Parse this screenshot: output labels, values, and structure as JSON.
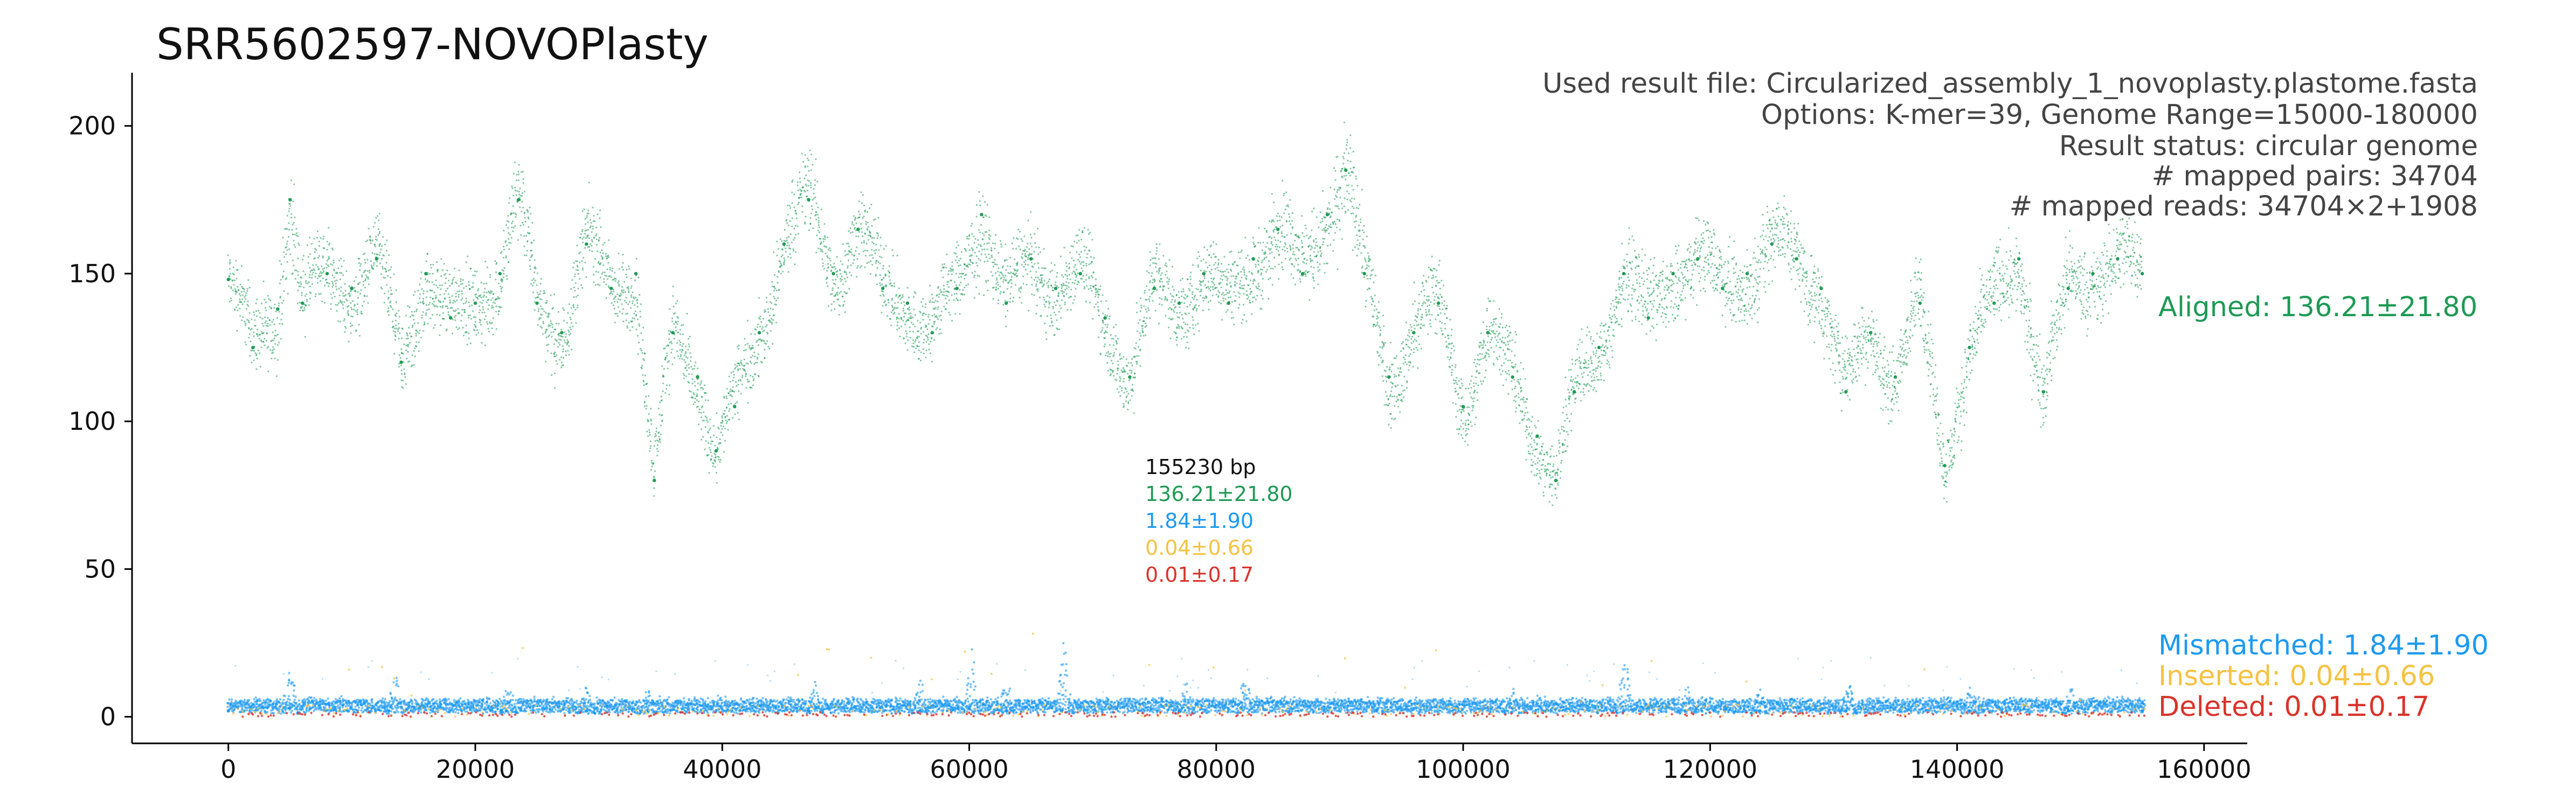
{
  "chart_data": {
    "type": "scatter",
    "title": "SRR5602597-NOVOPlasty",
    "xlabel": "",
    "ylabel": "",
    "xlim": [
      -7800,
      163500
    ],
    "ylim": [
      -9,
      218
    ],
    "x_ticks": [
      0,
      20000,
      40000,
      60000,
      80000,
      100000,
      120000,
      140000,
      160000
    ],
    "x_tick_labels": [
      "0",
      "20000",
      "40000",
      "60000",
      "80000",
      "100000",
      "120000",
      "140000",
      "160000"
    ],
    "y_ticks": [
      0,
      50,
      100,
      150,
      200
    ],
    "y_tick_labels": [
      "0",
      "50",
      "100",
      "150",
      "200"
    ],
    "grid": false,
    "info_lines": [
      "Used result file: Circularized_assembly_1_novoplasty.plastome.fasta",
      "Options: K-mer=39, Genome Range=15000-180000",
      "Result status: circular genome",
      "# mapped pairs: 34704",
      "# mapped reads: 34704×2+1908"
    ],
    "summary": {
      "length": "155230 bp",
      "aligned": "136.21±21.80",
      "mismatched": "1.84±1.90",
      "inserted": "0.04±0.66",
      "deleted": "0.01±0.17"
    },
    "series": [
      {
        "name": "Aligned: 136.21±21.80",
        "color": "#1f9a55",
        "x": [
          0,
          2000,
          4000,
          5000,
          6000,
          8000,
          10000,
          12000,
          14000,
          16000,
          18000,
          20000,
          22000,
          23500,
          25000,
          27000,
          29000,
          31000,
          33000,
          34500,
          36000,
          38000,
          39500,
          41000,
          43000,
          45000,
          47000,
          49000,
          51000,
          53000,
          55000,
          57000,
          59000,
          61000,
          63000,
          65000,
          67000,
          69000,
          71000,
          73000,
          75000,
          77000,
          79000,
          81000,
          83000,
          85000,
          87000,
          89000,
          90500,
          92000,
          94000,
          96000,
          98000,
          100000,
          102000,
          104000,
          106000,
          107500,
          109000,
          111000,
          113000,
          115000,
          117000,
          119000,
          121000,
          123000,
          125000,
          127000,
          129000,
          131000,
          133000,
          135000,
          137000,
          139000,
          141000,
          143000,
          145000,
          147000,
          149000,
          151000,
          153000,
          155000
        ],
        "y": [
          148,
          125,
          138,
          175,
          140,
          150,
          145,
          155,
          120,
          150,
          135,
          140,
          150,
          175,
          140,
          130,
          160,
          145,
          150,
          80,
          130,
          115,
          90,
          105,
          130,
          160,
          175,
          150,
          165,
          145,
          140,
          130,
          145,
          170,
          140,
          155,
          145,
          150,
          135,
          115,
          145,
          140,
          150,
          140,
          155,
          165,
          150,
          170,
          185,
          150,
          115,
          130,
          140,
          105,
          130,
          115,
          95,
          80,
          110,
          125,
          150,
          135,
          150,
          155,
          145,
          150,
          160,
          155,
          145,
          110,
          130,
          115,
          140,
          85,
          125,
          140,
          155,
          110,
          145,
          150,
          155,
          150
        ],
        "sd": [
          6,
          7,
          7,
          9,
          7,
          7,
          7,
          7,
          8,
          7,
          7,
          7,
          7,
          9,
          7,
          7,
          7,
          7,
          7,
          6,
          7,
          7,
          6,
          6,
          7,
          7,
          8,
          7,
          8,
          7,
          7,
          7,
          7,
          8,
          7,
          7,
          7,
          7,
          7,
          7,
          7,
          7,
          7,
          7,
          7,
          8,
          7,
          8,
          10,
          7,
          7,
          7,
          7,
          6,
          7,
          7,
          6,
          6,
          7,
          7,
          7,
          7,
          7,
          7,
          7,
          7,
          8,
          7,
          7,
          7,
          7,
          7,
          7,
          6,
          7,
          7,
          8,
          7,
          7,
          7,
          8,
          7
        ]
      },
      {
        "name": "Mismatched: 1.84±1.90",
        "color": "#1e9af0",
        "x": [
          0,
          5000,
          13000,
          22500,
          29000,
          34000,
          47000,
          56000,
          60000,
          63000,
          67500,
          77000,
          82000,
          93000,
          104000,
          113000,
          118000,
          124000,
          131000,
          141000,
          149000,
          155000
        ],
        "y": [
          2,
          3,
          2,
          2,
          2,
          2,
          2,
          2,
          3,
          2,
          2,
          2,
          3,
          2,
          3,
          2,
          2,
          2,
          2,
          2,
          2,
          2
        ],
        "peaks": [
          [
            5000,
            18
          ],
          [
            13500,
            14
          ],
          [
            22700,
            12
          ],
          [
            29000,
            10
          ],
          [
            34000,
            9
          ],
          [
            47500,
            12
          ],
          [
            56000,
            15
          ],
          [
            60200,
            22
          ],
          [
            63000,
            14
          ],
          [
            67700,
            28
          ],
          [
            77500,
            12
          ],
          [
            82300,
            16
          ],
          [
            104000,
            10
          ],
          [
            113100,
            24
          ],
          [
            118200,
            10
          ],
          [
            124000,
            9
          ],
          [
            131200,
            12
          ],
          [
            141000,
            10
          ],
          [
            149200,
            9
          ]
        ]
      },
      {
        "name": "Inserted: 0.04±0.66",
        "color": "#f5c242",
        "y_level": 0.04
      },
      {
        "name": "Deleted: 0.01±0.17",
        "color": "#d9342b",
        "y_level": 0.01
      }
    ]
  }
}
